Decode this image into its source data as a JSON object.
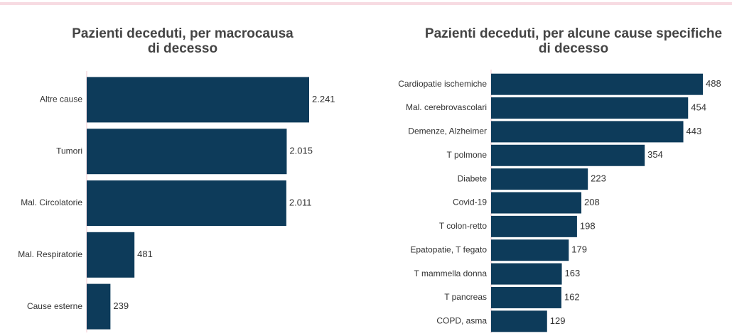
{
  "chart_data": [
    {
      "type": "barh",
      "title": [
        "Pazienti deceduti, per macrocausa",
        "di decesso"
      ],
      "categories": [
        "Altre cause",
        "Tumori",
        "Mal. Circolatorie",
        "Mal. Respiratorie",
        "Cause esterne"
      ],
      "values": [
        2241,
        2015,
        2011,
        481,
        239
      ],
      "value_labels": [
        "2.241",
        "2.015",
        "2.011",
        "481",
        "239"
      ],
      "color": "#0d3b5a"
    },
    {
      "type": "barh",
      "title": [
        "Pazienti deceduti, per alcune cause specifiche",
        "di decesso"
      ],
      "categories": [
        "Cardiopatie ischemiche",
        "Mal. cerebrovascolari",
        "Demenze, Alzheimer",
        "T polmone",
        "Diabete",
        "Covid-19",
        "T colon-retto",
        "Epatopatie, T fegato",
        "T mammella donna",
        "T pancreas",
        "COPD, asma"
      ],
      "values": [
        488,
        454,
        443,
        354,
        223,
        208,
        198,
        179,
        163,
        162,
        129
      ],
      "color": "#0d3b5a"
    }
  ]
}
